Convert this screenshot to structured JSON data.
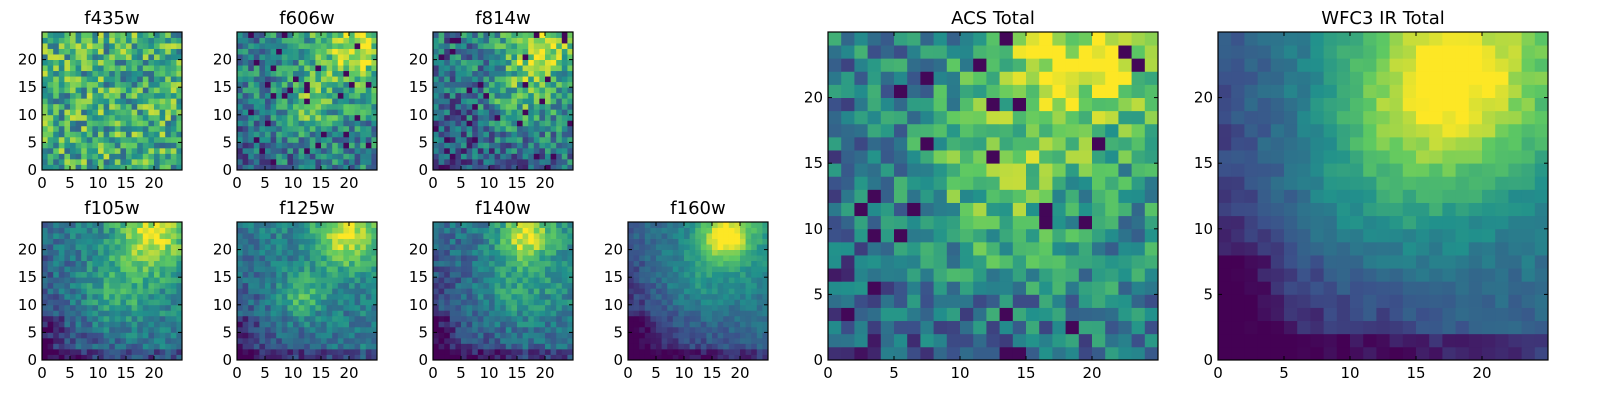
{
  "colormap": "viridis",
  "palette": [
    "#440154",
    "#3b528b",
    "#21918c",
    "#5ec962",
    "#fde725"
  ],
  "chart_data": [
    {
      "type": "heatmap",
      "title": "f435w",
      "grid_size": 25,
      "xticks": [
        0,
        5,
        10,
        15,
        20
      ],
      "yticks": [
        0,
        5,
        10,
        15,
        20
      ],
      "xlim": [
        0,
        25
      ],
      "ylim": [
        0,
        25
      ],
      "grid": false,
      "pattern": "mostly uniform mid-to-high values (green-yellow) with pixel-scale noise; no clear structure",
      "value_range": [
        0.3,
        1.0
      ]
    },
    {
      "type": "heatmap",
      "title": "f606w",
      "grid_size": 25,
      "xticks": [
        0,
        5,
        10,
        15,
        20
      ],
      "yticks": [
        0,
        5,
        10,
        15,
        20
      ],
      "xlim": [
        0,
        25
      ],
      "ylim": [
        0,
        25
      ],
      "grid": false,
      "pattern": "noisy; brighter (yellow) toward upper-right near (20,22) and center near (12,12); darker patches lower-left",
      "value_range": [
        0.0,
        1.0
      ]
    },
    {
      "type": "heatmap",
      "title": "f814w",
      "grid_size": 25,
      "xticks": [
        0,
        5,
        10,
        15,
        20
      ],
      "yticks": [
        0,
        5,
        10,
        15,
        20
      ],
      "xlim": [
        0,
        25
      ],
      "ylim": [
        0,
        25
      ],
      "grid": false,
      "pattern": "noisy; bright yellow peak upper-right near (18,22), secondary near (15,12); dark purple specks at left edge",
      "value_range": [
        0.0,
        1.0
      ]
    },
    {
      "type": "heatmap",
      "title": "f105w",
      "grid_size": 25,
      "xticks": [
        0,
        5,
        10,
        15,
        20
      ],
      "yticks": [
        0,
        5,
        10,
        15,
        20
      ],
      "xlim": [
        0,
        25
      ],
      "ylim": [
        0,
        25
      ],
      "grid": false,
      "pattern": "smoother; yellow peak near (19,22), green ridge through center, darker blue lower-left",
      "value_range": [
        0.1,
        1.0
      ]
    },
    {
      "type": "heatmap",
      "title": "f125w",
      "grid_size": 25,
      "xticks": [
        0,
        5,
        10,
        15,
        20
      ],
      "yticks": [
        0,
        5,
        10,
        15,
        20
      ],
      "xlim": [
        0,
        25
      ],
      "ylim": [
        0,
        25
      ],
      "grid": false,
      "pattern": "yellow peak near (19,22), bright blob near (11,11), darker lower-left",
      "value_range": [
        0.1,
        1.0
      ]
    },
    {
      "type": "heatmap",
      "title": "f140w",
      "grid_size": 25,
      "xticks": [
        0,
        5,
        10,
        15,
        20
      ],
      "yticks": [
        0,
        5,
        10,
        15,
        20
      ],
      "xlim": [
        0,
        25
      ],
      "ylim": [
        0,
        25
      ],
      "grid": false,
      "pattern": "yellow peak near (16,22), green interior, purple patches lower-left",
      "value_range": [
        0.0,
        1.0
      ]
    },
    {
      "type": "heatmap",
      "title": "f160w",
      "grid_size": 25,
      "xticks": [
        0,
        5,
        10,
        15,
        20
      ],
      "yticks": [
        0,
        5,
        10,
        15,
        20
      ],
      "xlim": [
        0,
        25
      ],
      "ylim": [
        0,
        25
      ],
      "grid": false,
      "pattern": "smooth; bright yellow peak near (17,22), green around, dark purple lower-left and bottom edge",
      "value_range": [
        0.0,
        1.0
      ]
    },
    {
      "type": "heatmap",
      "title": "ACS Total",
      "grid_size": 25,
      "xticks": [
        0,
        5,
        10,
        15,
        20
      ],
      "yticks": [
        0,
        5,
        10,
        15,
        20
      ],
      "xlim": [
        0,
        25
      ],
      "ylim": [
        0,
        25
      ],
      "grid": false,
      "pattern": "noisy; yellow peak upper-right near (18,23), yellow-green ridge through center (12,12); dark purple pixels at left edge and bottom",
      "value_range": [
        0.0,
        1.0
      ]
    },
    {
      "type": "heatmap",
      "title": "WFC3 IR Total",
      "grid_size": 25,
      "xticks": [
        0,
        5,
        10,
        15,
        20
      ],
      "yticks": [
        0,
        5,
        10,
        15,
        20
      ],
      "xlim": [
        0,
        25
      ],
      "ylim": [
        0,
        25
      ],
      "grid": false,
      "pattern": "smooth; bright yellow peak near (17,21), green across center, dark purple lower-left corner and bottom edge",
      "value_range": [
        0.0,
        1.0
      ]
    }
  ]
}
